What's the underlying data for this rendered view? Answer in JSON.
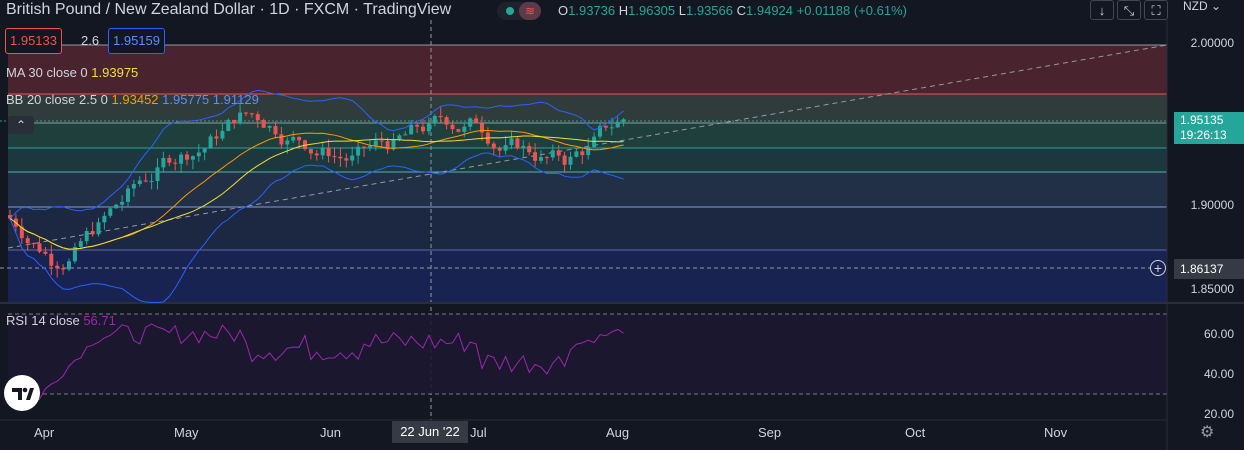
{
  "header": {
    "title": "British Pound / New Zealand Dollar · 1D · FXCM · TradingView",
    "ohlc": [
      {
        "key": "O",
        "value": "1.93736"
      },
      {
        "key": "H",
        "value": "1.96305"
      },
      {
        "key": "L",
        "value": "1.93566"
      },
      {
        "key": "C",
        "value": "1.94924"
      }
    ],
    "change": "+0.01188 (+0.61%)",
    "currency": "NZD",
    "currency_chevron": "⌄"
  },
  "trade": {
    "sell": "1.95133",
    "spread": "2.6",
    "buy": "1.95159"
  },
  "indicators": {
    "ma": {
      "label": "MA 30 close 0",
      "value": "1.93975",
      "color": "#f0e130"
    },
    "bb": {
      "label": "BB 20 close 2.5 0",
      "v1": "1.93452",
      "v2": "1.95775",
      "v3": "1.91129"
    },
    "rsi": {
      "label": "RSI 14 close",
      "value": "56.71"
    }
  },
  "price_axis": {
    "labels": [
      "2.00000",
      "1.90000",
      "1.85000"
    ],
    "current_price": "1.95135",
    "countdown": "19:26:13",
    "cursor_price": "1.86137"
  },
  "rsi_axis": {
    "labels": [
      "60.00",
      "40.00",
      "20.00"
    ]
  },
  "time_axis": {
    "labels": [
      "Apr",
      "May",
      "Jun",
      "Jul",
      "Aug",
      "Sep",
      "Oct",
      "Nov"
    ],
    "crosshair_date": "22 Jun '22"
  },
  "colors": {
    "up": "#26a69a",
    "down": "#ef5350",
    "ma": "#f0e130",
    "bb_mid": "#ff9800",
    "bb_band": "#2962ff",
    "rsi": "#9c27b0"
  },
  "icons": {
    "down_arrow": "arrow-down-icon",
    "fit": "auto-scale-icon",
    "fullscreen": "fullscreen-icon",
    "settings": "gear-icon",
    "logo": "tradingview-logo",
    "plus": "add-level-icon",
    "collapse": "chevron-up-icon"
  }
}
